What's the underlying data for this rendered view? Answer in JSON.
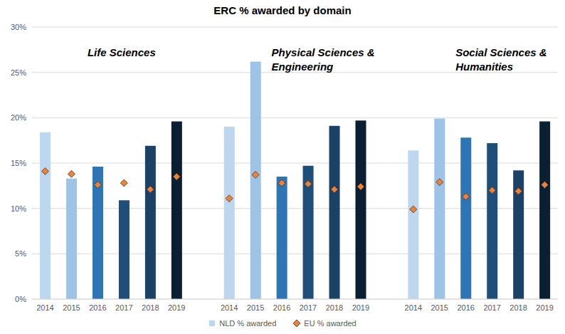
{
  "chart_data": {
    "type": "bar",
    "title": "ERC % awarded by domain",
    "categories": [
      "2014",
      "2015",
      "2016",
      "2017",
      "2018",
      "2019",
      null,
      "2014",
      "2015",
      "2016",
      "2017",
      "2018",
      "2019",
      null,
      "2014",
      "2015",
      "2016",
      "2017",
      "2018",
      "2019"
    ],
    "series": [
      {
        "name": "NLD % awarded",
        "type": "bar",
        "color": "#bdd7ee",
        "colors": [
          "#bdd7ee",
          "#9dc3e6",
          "#2e75b6",
          "#1f4e79",
          "#1c4166",
          "#0b1f33",
          null,
          "#bdd7ee",
          "#9dc3e6",
          "#2e75b6",
          "#1f4e79",
          "#1c4166",
          "#0b1f33",
          null,
          "#bdd7ee",
          "#9dc3e6",
          "#2e75b6",
          "#1f4e79",
          "#1c4166",
          "#0b1f33"
        ],
        "values": [
          18.4,
          13.3,
          14.6,
          10.9,
          16.9,
          19.6,
          null,
          19.0,
          26.2,
          13.5,
          14.7,
          19.1,
          19.7,
          null,
          16.4,
          19.9,
          17.8,
          17.2,
          14.2,
          19.6
        ]
      },
      {
        "name": "EU % awarded",
        "type": "scatter",
        "marker": "diamond",
        "color": "#e8823d",
        "values": [
          14.1,
          13.8,
          12.6,
          12.8,
          12.1,
          13.5,
          null,
          11.1,
          13.7,
          12.8,
          12.7,
          12.1,
          12.4,
          null,
          9.9,
          12.9,
          11.3,
          12.0,
          11.9,
          12.6
        ]
      }
    ],
    "ylim": [
      0,
      30
    ],
    "yticks": [
      {
        "value": 0,
        "label": "0%"
      },
      {
        "value": 5,
        "label": "5%"
      },
      {
        "value": 10,
        "label": "10%"
      },
      {
        "value": 15,
        "label": "15%"
      },
      {
        "value": 20,
        "label": "20%"
      },
      {
        "value": 25,
        "label": "25%"
      },
      {
        "value": 30,
        "label": "30%"
      }
    ],
    "grid": true,
    "legend": "bottom",
    "annotations": [
      "Life Sciences",
      "Physical Sciences & Engineering",
      "Social Sciences & Humanities"
    ]
  }
}
